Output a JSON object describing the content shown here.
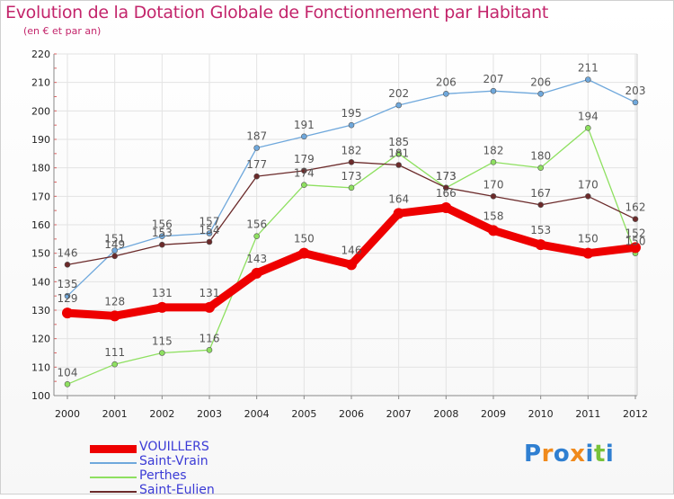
{
  "title": "Evolution de la Dotation Globale de Fonctionnement par Habitant",
  "subtitle": "(en € et par an)",
  "logo": "Proxiti",
  "chart_data": {
    "type": "line",
    "title": "Evolution de la Dotation Globale de Fonctionnement par Habitant",
    "ylabel": "(en € et par an)",
    "xlabel": "",
    "x": [
      "2000",
      "2001",
      "2002",
      "2003",
      "2004",
      "2005",
      "2006",
      "2007",
      "2008",
      "2009",
      "2010",
      "2011",
      "2012"
    ],
    "ylim": [
      100,
      220
    ],
    "yticks": [
      100,
      110,
      120,
      130,
      140,
      150,
      160,
      170,
      180,
      190,
      200,
      210,
      220
    ],
    "grid": true,
    "legend": "bottom-left",
    "series": [
      {
        "name": "VOUILLERS",
        "color": "#ee0000",
        "values": [
          129,
          128,
          131,
          131,
          143,
          150,
          146,
          164,
          166,
          158,
          153,
          150,
          152
        ]
      },
      {
        "name": "Saint-Vrain",
        "color": "#6fa8dc",
        "values": [
          135,
          151,
          156,
          157,
          187,
          191,
          195,
          202,
          206,
          207,
          206,
          211,
          203
        ]
      },
      {
        "name": "Perthes",
        "color": "#8ee060",
        "values": [
          104,
          111,
          115,
          116,
          156,
          174,
          173,
          185,
          173,
          182,
          180,
          194,
          150
        ]
      },
      {
        "name": "Saint-Eulien",
        "color": "#6b2a2a",
        "values": [
          146,
          149,
          153,
          154,
          177,
          179,
          182,
          181,
          173,
          170,
          167,
          170,
          162
        ]
      }
    ]
  }
}
